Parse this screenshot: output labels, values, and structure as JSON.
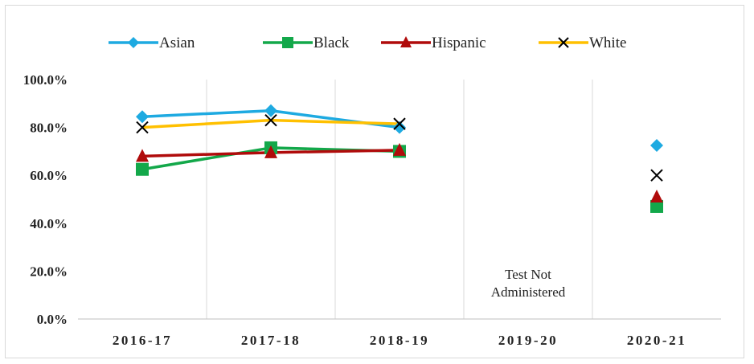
{
  "chart_data": {
    "type": "line",
    "title": "",
    "xlabel": "",
    "ylabel": "",
    "categories": [
      "2016-17",
      "2017-18",
      "2018-19",
      "2019-20",
      "2020-21"
    ],
    "y_ticks": [
      "0.0%",
      "20.0%",
      "40.0%",
      "60.0%",
      "80.0%",
      "100.0%"
    ],
    "ylim": [
      0,
      100
    ],
    "grid": "vertical",
    "legend_position": "top",
    "annotation": {
      "category": "2019-20",
      "lines": [
        "Test Not",
        "Administered"
      ]
    },
    "series": [
      {
        "name": "Asian",
        "color": "#1eaae1",
        "marker": "diamond",
        "values": [
          84.5,
          87,
          80,
          null,
          72.5
        ]
      },
      {
        "name": "Black",
        "color": "#13a84a",
        "marker": "square",
        "values": [
          62.5,
          71.5,
          70,
          null,
          47
        ]
      },
      {
        "name": "Hispanic",
        "color": "#b00b0b",
        "marker": "triangle",
        "values": [
          68,
          69.5,
          70.5,
          null,
          51
        ]
      },
      {
        "name": "White",
        "color": "#ffc000",
        "marker": "x",
        "marker_color": "#000000",
        "values": [
          80,
          83,
          81.5,
          null,
          60
        ]
      }
    ]
  }
}
